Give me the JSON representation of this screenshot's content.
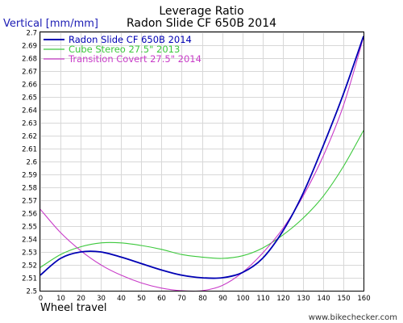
{
  "chart_data": {
    "type": "line",
    "title": "Leverage Ratio",
    "subtitle": "Radon Slide CF 650B 2014",
    "ylabel": "Vertical [mm/mm]",
    "xlabel": "Wheel travel",
    "watermark": "www.bikechecker.com",
    "xlim": [
      0,
      160
    ],
    "ylim": [
      2.5,
      2.7
    ],
    "x_ticks": [
      "0",
      "10",
      "20",
      "30",
      "40",
      "50",
      "60",
      "70",
      "80",
      "90",
      "100",
      "110",
      "120",
      "130",
      "140",
      "150",
      "160"
    ],
    "y_ticks": [
      "2.5",
      "2.51",
      "2.52",
      "2.53",
      "2.54",
      "2.55",
      "2.56",
      "2.57",
      "2.58",
      "2.59",
      "2.6",
      "2.61",
      "2.62",
      "2.63",
      "2.64",
      "2.65",
      "2.66",
      "2.67",
      "2.68",
      "2.69",
      "2.7"
    ],
    "grid": true,
    "legend_position": "top-left",
    "series": [
      {
        "name": "Radon Slide CF 650B 2014",
        "color": "#0000b4",
        "x": [
          0,
          10,
          20,
          30,
          40,
          50,
          60,
          70,
          80,
          90,
          100,
          110,
          120,
          130,
          140,
          150,
          160
        ],
        "values": [
          2.512,
          2.525,
          2.53,
          2.53,
          2.526,
          2.521,
          2.516,
          2.512,
          2.51,
          2.51,
          2.514,
          2.525,
          2.546,
          2.575,
          2.612,
          2.652,
          2.697
        ]
      },
      {
        "name": "Cube Stereo 27.5\" 2013",
        "color": "#3cc83c",
        "x": [
          0,
          10,
          20,
          30,
          40,
          50,
          60,
          70,
          80,
          90,
          100,
          110,
          120,
          130,
          140,
          150,
          160
        ],
        "values": [
          2.518,
          2.528,
          2.534,
          2.537,
          2.537,
          2.535,
          2.532,
          2.528,
          2.526,
          2.525,
          2.527,
          2.533,
          2.543,
          2.556,
          2.573,
          2.596,
          2.624
        ]
      },
      {
        "name": "Transition Covert 27.5\" 2014",
        "color": "#c83cc8",
        "x": [
          0,
          10,
          20,
          30,
          40,
          50,
          60,
          70,
          80,
          90,
          100,
          110,
          120,
          130,
          140,
          150,
          160
        ],
        "values": [
          2.563,
          2.545,
          2.531,
          2.52,
          2.512,
          2.506,
          2.502,
          2.5,
          2.5,
          2.504,
          2.514,
          2.529,
          2.548,
          2.573,
          2.604,
          2.643,
          2.696
        ]
      }
    ]
  }
}
